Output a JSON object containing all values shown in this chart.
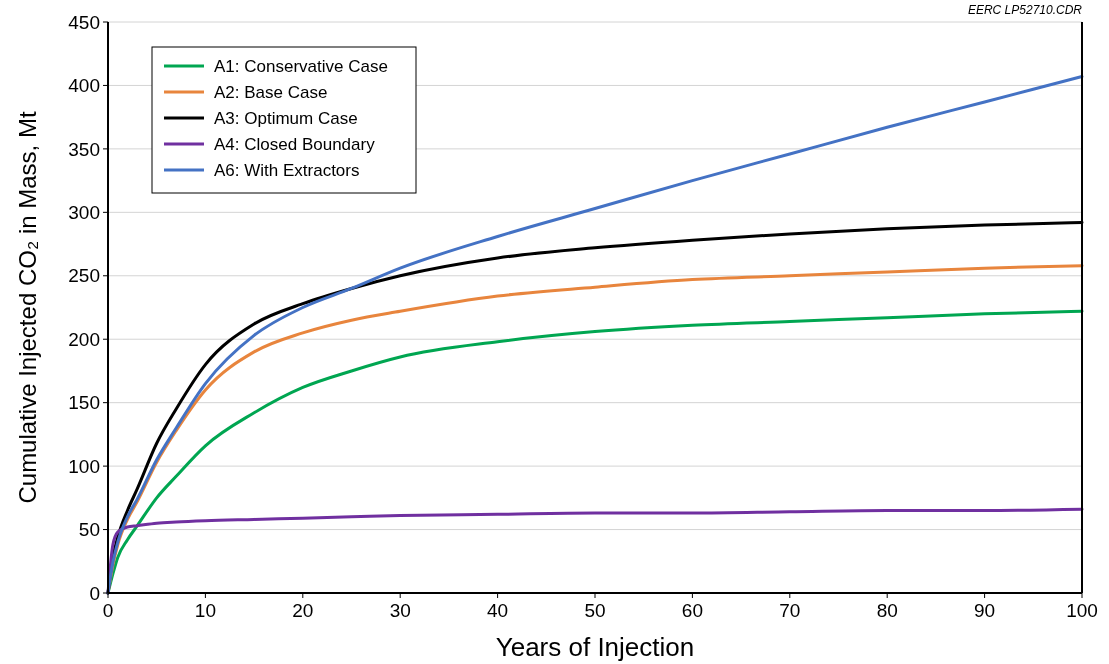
{
  "chart_data": {
    "type": "line",
    "xlabel": "Years of Injection",
    "ylabel": "Cumulative Injected CO₂ in Mass, Mt",
    "annotations": [
      "EERC LP52710.CDR"
    ],
    "x": [
      0,
      0.5,
      1,
      2,
      3,
      5,
      7,
      10,
      15,
      20,
      25,
      30,
      40,
      50,
      60,
      70,
      80,
      90,
      100
    ],
    "series": [
      {
        "name": "A1: Conservative Case",
        "color": "#00a651",
        "values": [
          0,
          15,
          28,
          42,
          53,
          75,
          92,
          116,
          142,
          162,
          175,
          186,
          198,
          206,
          211,
          214,
          217,
          220,
          222
        ]
      },
      {
        "name": "A2: Base Case",
        "color": "#e8853d",
        "values": [
          0,
          22,
          38,
          58,
          72,
          103,
          128,
          160,
          190,
          205,
          215,
          222,
          234,
          241,
          247,
          250,
          253,
          256,
          258
        ]
      },
      {
        "name": "A3: Optimum Case",
        "color": "#000000",
        "values": [
          0,
          28,
          44,
          65,
          82,
          118,
          145,
          180,
          212,
          228,
          240,
          250,
          264,
          272,
          278,
          283,
          287,
          290,
          292
        ]
      },
      {
        "name": "A4: Closed Boundary",
        "color": "#7030a0",
        "values": [
          0,
          38,
          48,
          52,
          53,
          55,
          56,
          57,
          58,
          59,
          60,
          61,
          62,
          63,
          63,
          64,
          65,
          65,
          66
        ]
      },
      {
        "name": "A6: With Extractors",
        "color": "#4472c4",
        "values": [
          0,
          24,
          40,
          60,
          74,
          105,
          130,
          165,
          203,
          225,
          240,
          256,
          281,
          303,
          325,
          346,
          367,
          387,
          407
        ]
      }
    ],
    "xlim": [
      0,
      100
    ],
    "xticks": [
      0,
      10,
      20,
      30,
      40,
      50,
      60,
      70,
      80,
      90,
      100
    ],
    "ylim": [
      0,
      450
    ],
    "yticks": [
      0,
      50,
      100,
      150,
      200,
      250,
      300,
      350,
      400,
      450
    ],
    "grid": "y",
    "legend": "top left",
    "marker": "none",
    "line_style": "solid"
  }
}
